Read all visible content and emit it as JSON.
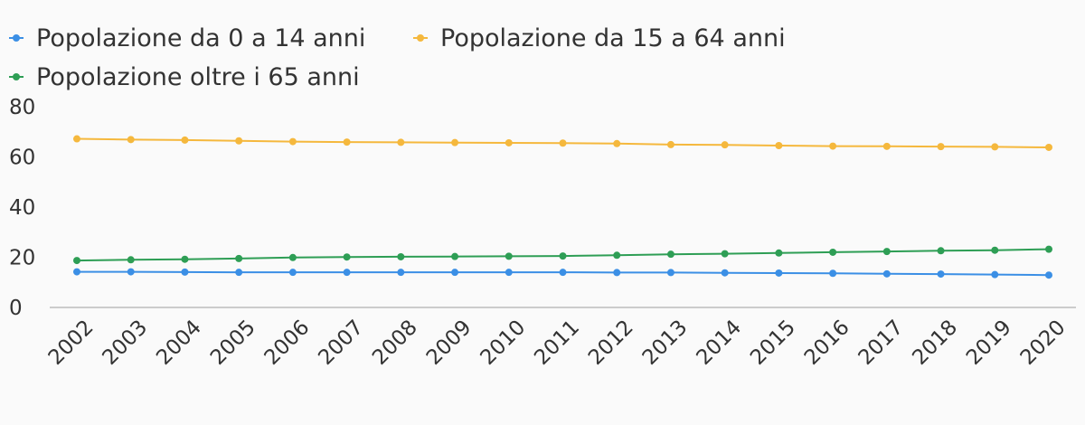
{
  "chart_data": {
    "type": "line",
    "title": "",
    "xlabel": "",
    "ylabel": "",
    "x": [
      "2002",
      "2003",
      "2004",
      "2005",
      "2006",
      "2007",
      "2008",
      "2009",
      "2010",
      "2011",
      "2012",
      "2013",
      "2014",
      "2015",
      "2016",
      "2017",
      "2018",
      "2019",
      "2020"
    ],
    "ylim": [
      0,
      80
    ],
    "yticks": [
      "0",
      "20",
      "40",
      "60",
      "80"
    ],
    "grid": false,
    "legend_position": "top-left",
    "series": [
      {
        "name": "Popolazione da 0 a 14 anni",
        "color": "#3b8fe5",
        "values": [
          14.2,
          14.2,
          14.1,
          14.0,
          14.0,
          14.0,
          14.0,
          14.0,
          14.0,
          14.0,
          13.9,
          13.9,
          13.8,
          13.7,
          13.6,
          13.4,
          13.3,
          13.1,
          12.9
        ]
      },
      {
        "name": "Popolazione da 15 a 64 anni",
        "color": "#f5b83d",
        "values": [
          67.2,
          66.9,
          66.7,
          66.4,
          66.1,
          65.9,
          65.8,
          65.7,
          65.6,
          65.5,
          65.3,
          64.9,
          64.8,
          64.5,
          64.3,
          64.2,
          64.1,
          64.0,
          63.8
        ]
      },
      {
        "name": "Popolazione oltre i 65 anni",
        "color": "#2e9e55",
        "values": [
          18.7,
          19.0,
          19.2,
          19.5,
          19.9,
          20.1,
          20.2,
          20.3,
          20.4,
          20.5,
          20.8,
          21.2,
          21.4,
          21.7,
          22.0,
          22.3,
          22.6,
          22.8,
          23.2
        ]
      }
    ]
  }
}
